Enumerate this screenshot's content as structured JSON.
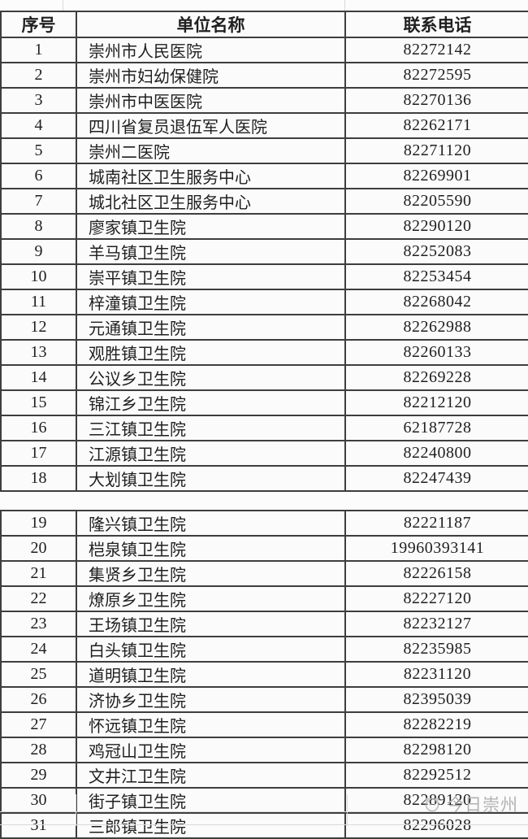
{
  "table": {
    "headers": [
      "序号",
      "单位名称",
      "联系电话"
    ],
    "rows": [
      {
        "no": "1",
        "name": "崇州市人民医院",
        "phone": "82272142"
      },
      {
        "no": "2",
        "name": "崇州市妇幼保健院",
        "phone": "82272595"
      },
      {
        "no": "3",
        "name": "崇州市中医医院",
        "phone": "82270136"
      },
      {
        "no": "4",
        "name": "四川省复员退伍军人医院",
        "phone": "82262171"
      },
      {
        "no": "5",
        "name": "崇州二医院",
        "phone": "82271120"
      },
      {
        "no": "6",
        "name": "城南社区卫生服务中心",
        "phone": "82269901"
      },
      {
        "no": "7",
        "name": "城北社区卫生服务中心",
        "phone": "82205590"
      },
      {
        "no": "8",
        "name": "廖家镇卫生院",
        "phone": "82290120"
      },
      {
        "no": "9",
        "name": "羊马镇卫生院",
        "phone": "82252083"
      },
      {
        "no": "10",
        "name": "崇平镇卫生院",
        "phone": "82253454"
      },
      {
        "no": "11",
        "name": "梓潼镇卫生院",
        "phone": "82268042"
      },
      {
        "no": "12",
        "name": "元通镇卫生院",
        "phone": "82262988"
      },
      {
        "no": "13",
        "name": "观胜镇卫生院",
        "phone": "82260133"
      },
      {
        "no": "14",
        "name": "公议乡卫生院",
        "phone": "82269228"
      },
      {
        "no": "15",
        "name": "锦江乡卫生院",
        "phone": "82212120"
      },
      {
        "no": "16",
        "name": "三江镇卫生院",
        "phone": "62187728"
      },
      {
        "no": "17",
        "name": "江源镇卫生院",
        "phone": "82240800"
      },
      {
        "no": "18",
        "name": "大划镇卫生院",
        "phone": "82247439"
      },
      {
        "no": "19",
        "name": "隆兴镇卫生院",
        "phone": "82221187"
      },
      {
        "no": "20",
        "name": "桤泉镇卫生院",
        "phone": "19960393141"
      },
      {
        "no": "21",
        "name": "集贤乡卫生院",
        "phone": "82226158"
      },
      {
        "no": "22",
        "name": "燎原乡卫生院",
        "phone": "82227120"
      },
      {
        "no": "23",
        "name": "王场镇卫生院",
        "phone": "82232127"
      },
      {
        "no": "24",
        "name": "白头镇卫生院",
        "phone": "82235985"
      },
      {
        "no": "25",
        "name": "道明镇卫生院",
        "phone": "82231120"
      },
      {
        "no": "26",
        "name": "济协乡卫生院",
        "phone": "82395039"
      },
      {
        "no": "27",
        "name": "怀远镇卫生院",
        "phone": "82282219"
      },
      {
        "no": "28",
        "name": "鸡冠山卫生院",
        "phone": "82298120"
      },
      {
        "no": "29",
        "name": "文井江卫生院",
        "phone": "82292512"
      },
      {
        "no": "30",
        "name": "街子镇卫生院",
        "phone": "82289120"
      },
      {
        "no": "31",
        "name": "三郎镇卫生院",
        "phone": "82296028"
      }
    ],
    "seam_after_row": 18
  },
  "watermark": {
    "text": "今日崇州"
  },
  "colors": {
    "border_dark": "#3e3e3e",
    "border_light": "#dadada",
    "text": "#1f1f1f",
    "background": "#fcfcfc",
    "watermark": "#b2b2b2"
  }
}
